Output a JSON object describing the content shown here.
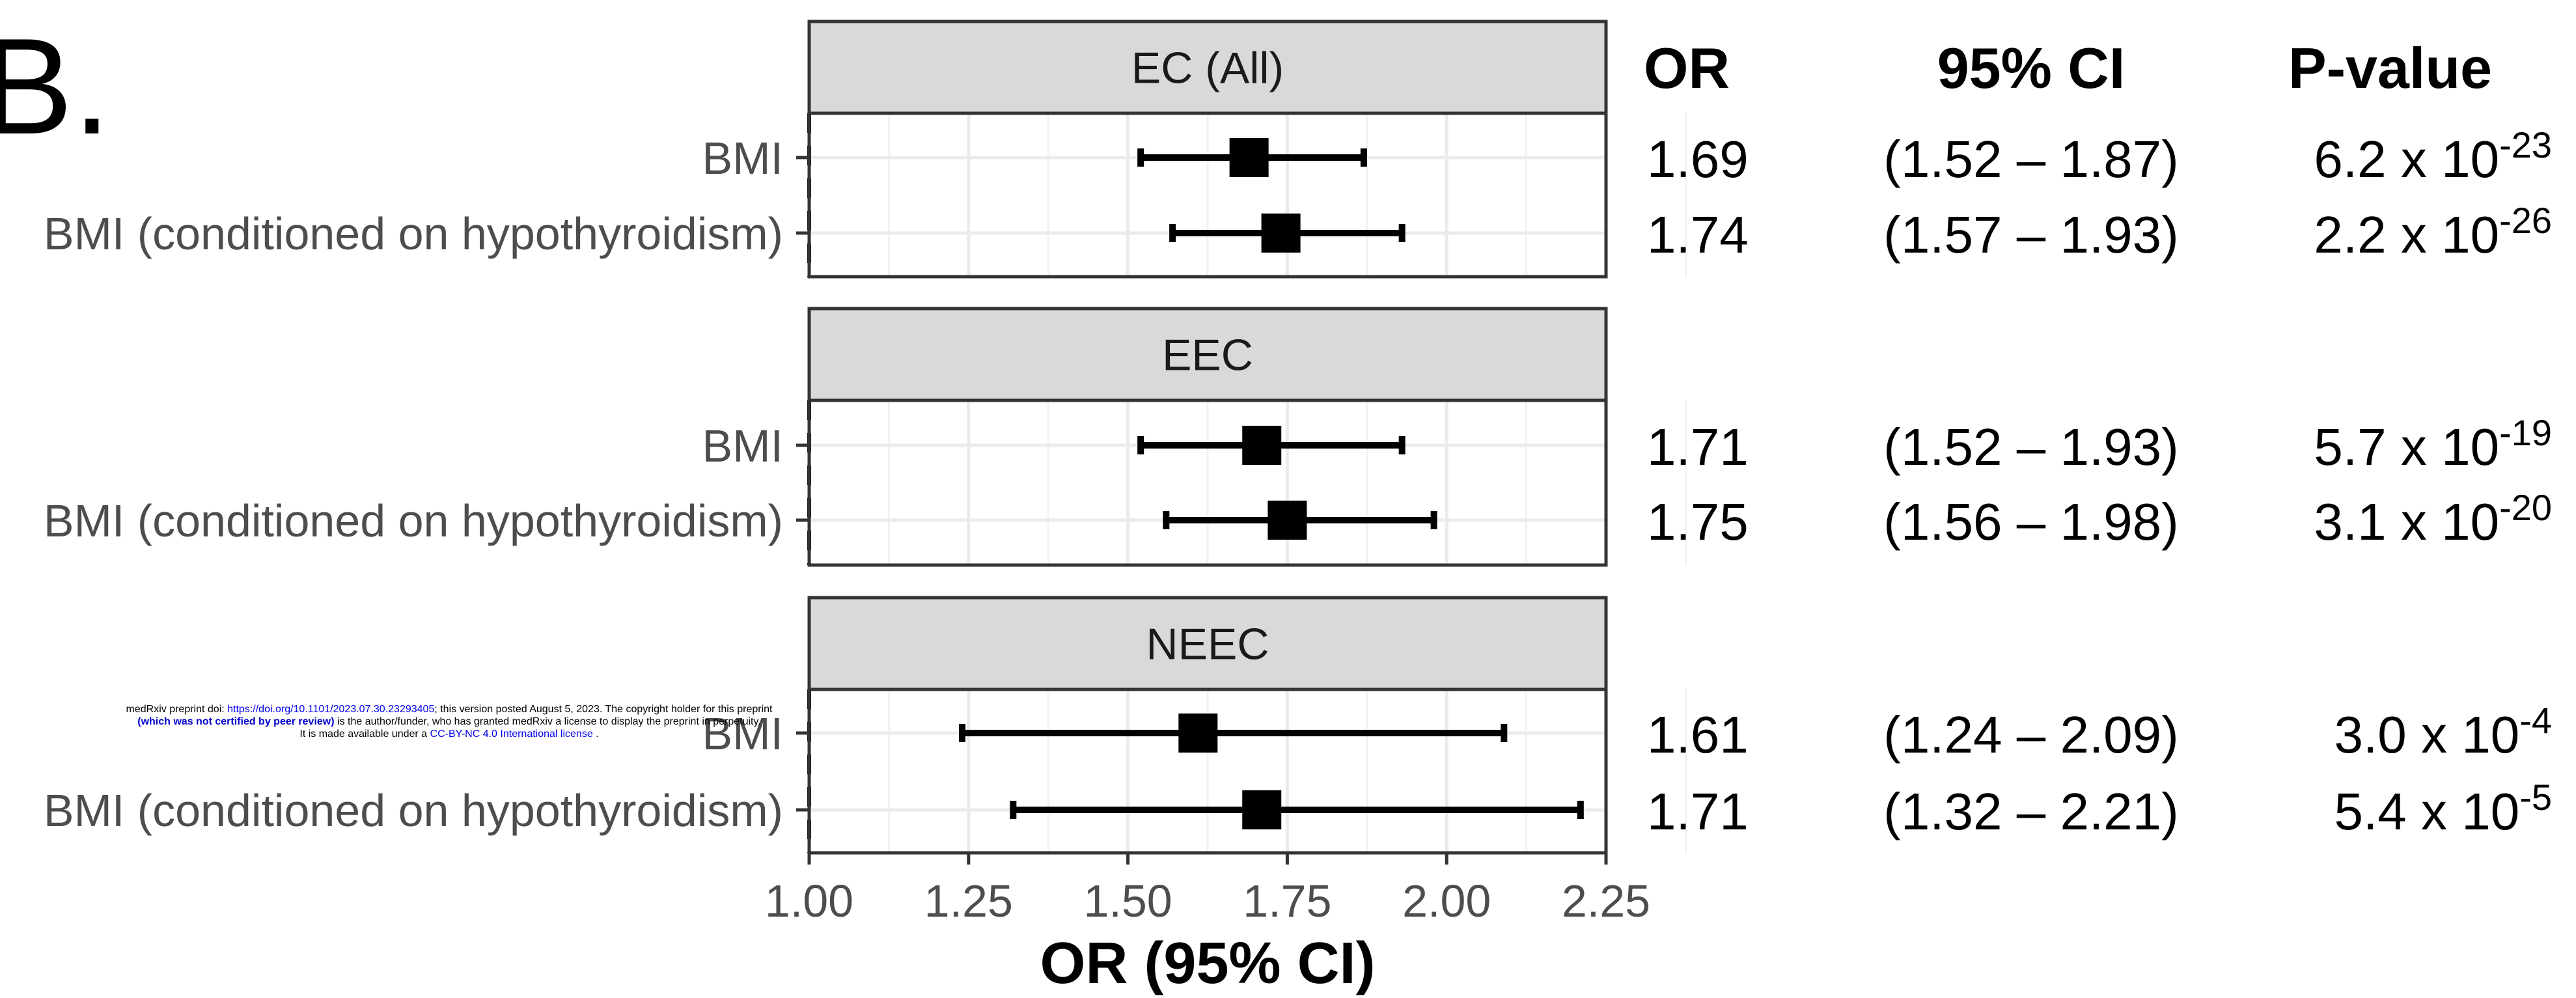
{
  "panel_letter": "B.",
  "columns": {
    "or": "OR",
    "ci": "95% CI",
    "p": "P-value"
  },
  "xlabel": "OR (95% CI)",
  "notice": {
    "line1_a": "medRxiv preprint doi: ",
    "line1_link": "https://doi.org/10.1101/2023.07.30.23293405",
    "line1_b": "; this version posted August 5, 2023. The copyright holder for this preprint",
    "line2_bold": "(which was not certified by peer review)",
    "line2_rest": " is the author/funder, who has granted medRxiv a license to display the preprint in perpetuity.",
    "line3_a": "It is made available under a ",
    "line3_link": "CC-BY-NC 4.0 International license",
    "line3_b": " ."
  },
  "chart_data": {
    "type": "forest",
    "xlim": [
      1.0,
      2.25
    ],
    "x_ticks": [
      {
        "value": 1.0,
        "label": "1.00"
      },
      {
        "value": 1.25,
        "label": "1.25"
      },
      {
        "value": 1.5,
        "label": "1.50"
      },
      {
        "value": 1.75,
        "label": "1.75"
      },
      {
        "value": 2.0,
        "label": "2.00"
      },
      {
        "value": 2.25,
        "label": "2.25"
      }
    ],
    "reference_line": 1.0,
    "grid": true,
    "panels": [
      {
        "title": "EC (All)",
        "rows": [
          {
            "label": "BMI",
            "or": 1.69,
            "lo": 1.52,
            "hi": 1.87,
            "or_text": "1.69",
            "ci_text": "(1.52 – 1.87)",
            "p_base": "6.2 x 10",
            "p_exp": "-23"
          },
          {
            "label": "BMI (conditioned on hypothyroidism)",
            "or": 1.74,
            "lo": 1.57,
            "hi": 1.93,
            "or_text": "1.74",
            "ci_text": "(1.57 – 1.93)",
            "p_base": "2.2 x 10",
            "p_exp": "-26"
          }
        ]
      },
      {
        "title": "EEC",
        "rows": [
          {
            "label": "BMI",
            "or": 1.71,
            "lo": 1.52,
            "hi": 1.93,
            "or_text": "1.71",
            "ci_text": "(1.52 – 1.93)",
            "p_base": "5.7 x 10",
            "p_exp": "-19"
          },
          {
            "label": "BMI (conditioned on hypothyroidism)",
            "or": 1.75,
            "lo": 1.56,
            "hi": 1.98,
            "or_text": "1.75",
            "ci_text": "(1.56 – 1.98)",
            "p_base": "3.1 x 10",
            "p_exp": "-20"
          }
        ]
      },
      {
        "title": "NEEC",
        "rows": [
          {
            "label": "BMI",
            "or": 1.61,
            "lo": 1.24,
            "hi": 2.09,
            "or_text": "1.61",
            "ci_text": "(1.24 – 2.09)",
            "p_base": "3.0 x 10",
            "p_exp": "-4"
          },
          {
            "label": "BMI (conditioned on hypothyroidism)",
            "or": 1.71,
            "lo": 1.32,
            "hi": 2.21,
            "or_text": "1.71",
            "ci_text": "(1.32 – 2.21)",
            "p_base": "5.4 x 10",
            "p_exp": "-5"
          }
        ]
      }
    ]
  }
}
